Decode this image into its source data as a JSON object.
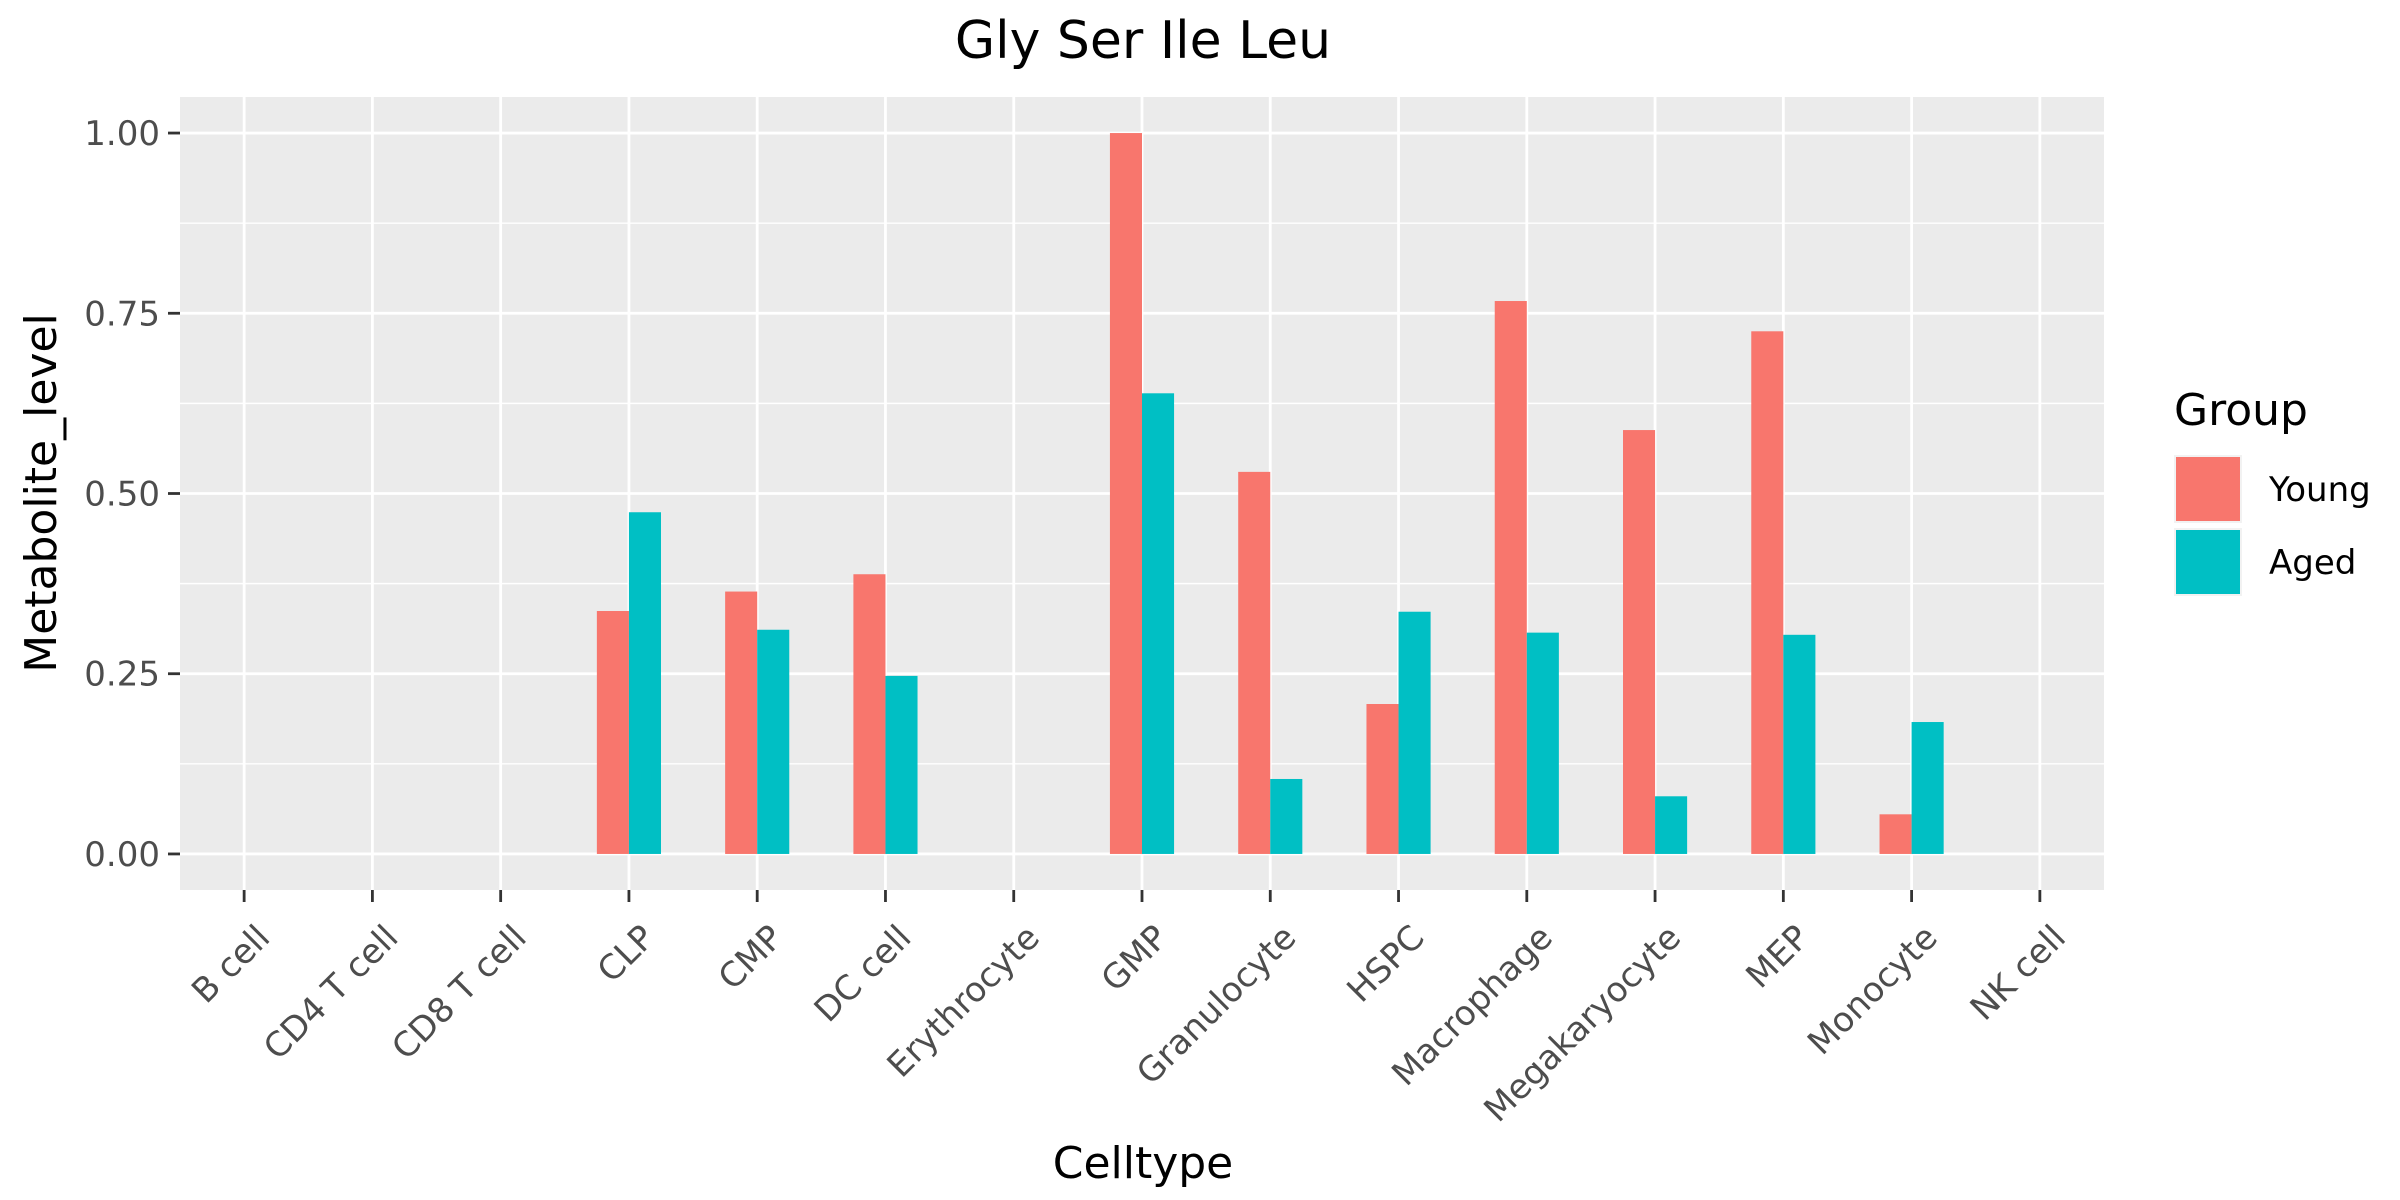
{
  "chart_data": {
    "type": "bar",
    "title": "Gly Ser Ile Leu",
    "xlabel": "Celltype",
    "ylabel": "Metabolite_level",
    "categories": [
      "B cell",
      "CD4 T cell",
      "CD8 T cell",
      "CLP",
      "CMP",
      "DC cell",
      "Erythrocyte",
      "GMP",
      "Granulocyte",
      "HSPC",
      "Macrophage",
      "Megakaryocyte",
      "MEP",
      "Monocyte",
      "NK cell"
    ],
    "series": [
      {
        "name": "Young",
        "color": "#F8766D",
        "values": [
          0,
          0,
          0,
          0.337,
          0.364,
          0.388,
          0,
          1.0,
          0.53,
          0.208,
          0.767,
          0.588,
          0.725,
          0.055,
          0
        ]
      },
      {
        "name": "Aged",
        "color": "#00BFC4",
        "values": [
          0,
          0,
          0,
          0.474,
          0.311,
          0.247,
          0,
          0.639,
          0.104,
          0.336,
          0.307,
          0.08,
          0.304,
          0.183,
          0
        ]
      }
    ],
    "ylim": [
      -0.05,
      1.05
    ],
    "yticks": [
      0,
      0.25,
      0.5,
      0.75,
      1.0
    ],
    "ytick_labels": [
      "0.00",
      "0.25",
      "0.50",
      "0.75",
      "1.00"
    ],
    "grid": true,
    "legend": {
      "title": "Group",
      "position": "right"
    }
  }
}
